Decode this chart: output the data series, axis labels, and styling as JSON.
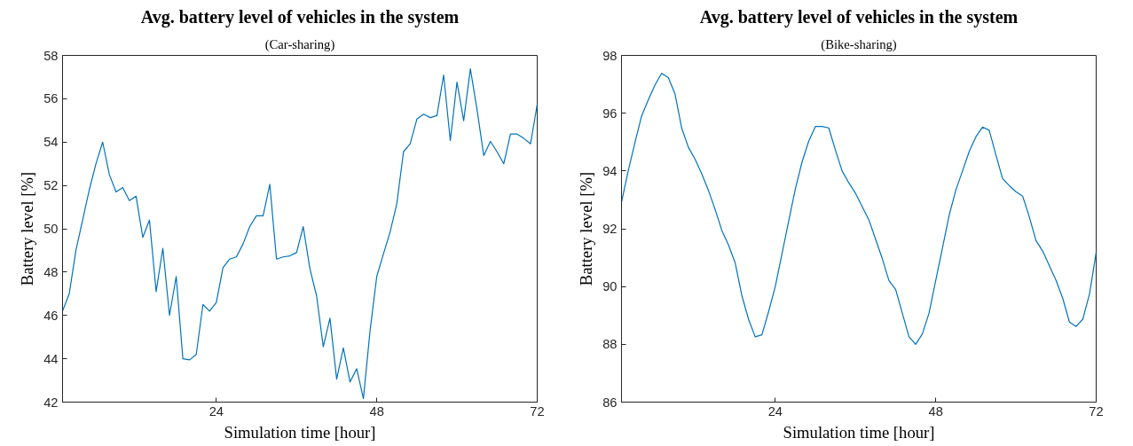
{
  "chart_data": [
    {
      "type": "line",
      "title": "Avg. battery level of vehicles in the system",
      "subtitle": "(Car-sharing)",
      "xlabel": "Simulation time [hour]",
      "ylabel": "Battery level [%]",
      "xlim": [
        1,
        72
      ],
      "xticks": [
        24,
        48,
        72
      ],
      "ylim": [
        42,
        58
      ],
      "yticks": [
        42,
        44,
        46,
        48,
        50,
        52,
        54,
        56,
        58
      ],
      "grid": false,
      "x": [
        1,
        2,
        3,
        4,
        5,
        6,
        7,
        8,
        9,
        10,
        11,
        12,
        13,
        14,
        15,
        16,
        17,
        18,
        19,
        20,
        21,
        22,
        23,
        24,
        25,
        26,
        27,
        28,
        29,
        30,
        31,
        32,
        33,
        34,
        35,
        36,
        37,
        38,
        39,
        40,
        41,
        42,
        43,
        44,
        45,
        46,
        47,
        48,
        49,
        50,
        51,
        52,
        53,
        54,
        55,
        56,
        57,
        58,
        59,
        60,
        61,
        62,
        63,
        64,
        65,
        66,
        67,
        68,
        69,
        70,
        71,
        72
      ],
      "series": [
        {
          "color": "#0072bd",
          "values": [
            46.2,
            47.0,
            49.0,
            50.4,
            51.8,
            53.0,
            54.0,
            52.5,
            51.7,
            51.9,
            51.3,
            51.5,
            49.6,
            50.4,
            47.1,
            49.1,
            46.0,
            47.8,
            44.0,
            43.95,
            44.2,
            46.5,
            46.2,
            46.6,
            48.2,
            48.6,
            48.7,
            49.3,
            50.1,
            50.6,
            50.6,
            52.05,
            48.6,
            48.7,
            48.75,
            48.9,
            50.1,
            48.15,
            46.9,
            44.55,
            45.87,
            43.06,
            44.5,
            42.93,
            43.54,
            42.16,
            45.3,
            47.8,
            48.84,
            49.86,
            51.16,
            53.55,
            53.92,
            55.06,
            55.29,
            55.13,
            55.22,
            57.1,
            54.07,
            56.77,
            54.99,
            57.38,
            55.5,
            53.38,
            54.03,
            53.55,
            53.0,
            54.37,
            54.37,
            54.17,
            53.92,
            55.74
          ]
        }
      ]
    },
    {
      "type": "line",
      "title": "Avg. battery level of vehicles in the system",
      "subtitle": "(Bike-sharing)",
      "xlabel": "Simulation time [hour]",
      "ylabel": "Battery level [%]",
      "xlim": [
        1,
        72
      ],
      "xticks": [
        24,
        48,
        72
      ],
      "ylim": [
        86,
        98
      ],
      "yticks": [
        86,
        88,
        90,
        92,
        94,
        96,
        98
      ],
      "grid": false,
      "x": [
        1,
        2,
        3,
        4,
        5,
        6,
        7,
        8,
        9,
        10,
        11,
        12,
        13,
        14,
        15,
        16,
        17,
        18,
        19,
        20,
        21,
        22,
        23,
        24,
        25,
        26,
        27,
        28,
        29,
        30,
        31,
        32,
        33,
        34,
        35,
        36,
        37,
        38,
        39,
        40,
        41,
        42,
        43,
        44,
        45,
        46,
        47,
        48,
        49,
        50,
        51,
        52,
        53,
        54,
        55,
        56,
        57,
        58,
        59,
        60,
        61,
        62,
        63,
        64,
        65,
        66,
        67,
        68,
        69,
        70,
        71,
        72
      ],
      "series": [
        {
          "color": "#0072bd",
          "values": [
            92.92,
            94.0,
            94.97,
            95.9,
            96.46,
            96.97,
            97.38,
            97.23,
            96.67,
            95.49,
            94.82,
            94.41,
            93.9,
            93.33,
            92.67,
            91.95,
            91.44,
            90.82,
            89.69,
            88.87,
            88.26,
            88.33,
            89.13,
            90.0,
            91.13,
            92.26,
            93.38,
            94.31,
            95.03,
            95.54,
            95.54,
            95.49,
            94.72,
            94.0,
            93.59,
            93.23,
            92.77,
            92.31,
            91.64,
            90.97,
            90.21,
            89.9,
            89.08,
            88.26,
            88.0,
            88.36,
            89.08,
            90.21,
            91.33,
            92.46,
            93.33,
            94.0,
            94.67,
            95.18,
            95.52,
            95.41,
            94.56,
            93.74,
            93.49,
            93.28,
            93.13,
            92.41,
            91.59,
            91.23,
            90.72,
            90.21,
            89.59,
            88.77,
            88.62,
            88.87,
            89.74,
            91.18
          ]
        }
      ]
    }
  ]
}
